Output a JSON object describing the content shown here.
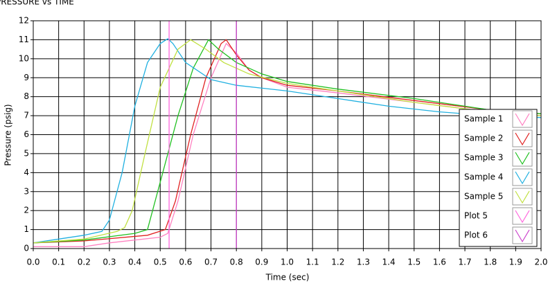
{
  "chart_data": {
    "type": "line",
    "title": "PRESSURE vs TIME",
    "xlabel": "Time (sec)",
    "ylabel": "Pressure (psig)",
    "xlim": [
      0,
      2
    ],
    "ylim": [
      0,
      12
    ],
    "xticks": [
      {
        "value": 0,
        "label": "0.0"
      },
      0.1,
      0.2,
      0.3,
      0.4,
      0.5,
      0.6,
      0.7,
      0.8,
      0.9,
      {
        "value": 1,
        "label": "1.0"
      },
      1.1,
      1.2,
      1.3,
      1.4,
      1.5,
      1.6,
      1.7,
      1.8,
      1.9,
      {
        "value": 2,
        "label": "2.0"
      }
    ],
    "yticks": [
      0,
      1,
      2,
      3,
      4,
      5,
      6,
      7,
      8,
      9,
      10,
      11,
      12
    ],
    "grid": true,
    "legend": "right",
    "series": [
      {
        "name": "Sample 1",
        "color": "#ff80c0",
        "x": [
          0,
          0.2,
          0.3,
          0.5,
          0.53,
          0.57,
          0.63,
          0.7,
          0.76,
          0.8,
          0.85,
          0.9,
          1.0,
          1.2,
          1.5,
          1.8,
          2.0
        ],
        "values": [
          0.1,
          0.1,
          0.3,
          0.6,
          0.8,
          2.5,
          6,
          9,
          10.8,
          10.3,
          9.4,
          9.0,
          8.5,
          8.2,
          7.7,
          7.2,
          7.0
        ]
      },
      {
        "name": "Sample 2",
        "color": "#e02020",
        "x": [
          0,
          0.2,
          0.45,
          0.52,
          0.56,
          0.62,
          0.68,
          0.74,
          0.76,
          0.8,
          0.85,
          0.9,
          1.0,
          1.2,
          1.5,
          1.8,
          2.0
        ],
        "values": [
          0.3,
          0.4,
          0.7,
          1.0,
          2.5,
          6,
          9,
          10.8,
          11.0,
          10.2,
          9.4,
          9.0,
          8.6,
          8.3,
          7.8,
          7.3,
          7.1
        ]
      },
      {
        "name": "Sample 3",
        "color": "#20c020",
        "x": [
          0,
          0.2,
          0.4,
          0.45,
          0.5,
          0.57,
          0.63,
          0.69,
          0.73,
          0.8,
          0.9,
          1.0,
          1.2,
          1.5,
          1.8,
          2.0
        ],
        "values": [
          0.3,
          0.45,
          0.8,
          1.0,
          3.5,
          7,
          9.5,
          11,
          10.5,
          9.8,
          9.2,
          8.8,
          8.4,
          7.9,
          7.3,
          7.1
        ]
      },
      {
        "name": "Sample 4",
        "color": "#20b0e0",
        "x": [
          0,
          0.1,
          0.2,
          0.27,
          0.3,
          0.35,
          0.4,
          0.45,
          0.5,
          0.53,
          0.55,
          0.6,
          0.7,
          0.8,
          1.0,
          1.2,
          1.4,
          1.6,
          1.8,
          2.0
        ],
        "values": [
          0.3,
          0.5,
          0.7,
          0.9,
          1.5,
          4,
          7.5,
          9.8,
          10.8,
          11.05,
          10.8,
          9.8,
          8.9,
          8.6,
          8.3,
          7.9,
          7.5,
          7.2,
          7.0,
          6.9
        ]
      },
      {
        "name": "Sample 5",
        "color": "#c0e040",
        "x": [
          0,
          0.2,
          0.33,
          0.36,
          0.39,
          0.44,
          0.5,
          0.57,
          0.62,
          0.68,
          0.75,
          0.85,
          1.0,
          1.2,
          1.5,
          1.8,
          2.0
        ],
        "values": [
          0.3,
          0.5,
          0.9,
          1.1,
          2,
          5,
          8.5,
          10.5,
          11.0,
          10.5,
          9.8,
          9.2,
          8.7,
          8.3,
          7.7,
          7.2,
          7.0
        ]
      },
      {
        "name": "Plot 5",
        "color": "#ff66dd",
        "x": [
          0.535,
          0.535
        ],
        "values": [
          0,
          12
        ]
      },
      {
        "name": "Plot 6",
        "color": "#cc44cc",
        "x": [
          0.8,
          0.8
        ],
        "values": [
          0,
          12
        ]
      }
    ]
  }
}
